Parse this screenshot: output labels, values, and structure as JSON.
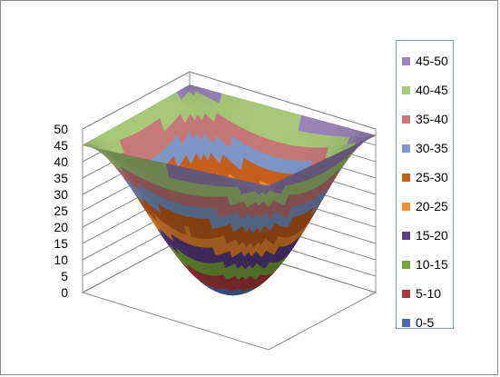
{
  "chart_data": {
    "type": "surface",
    "title": "",
    "z_axis": {
      "min": 0,
      "max": 50,
      "step": 5,
      "tick_labels": [
        "0",
        "5",
        "10",
        "15",
        "20",
        "25",
        "30",
        "35",
        "40",
        "45",
        "50"
      ]
    },
    "surface": {
      "shape": "bowl",
      "corner_values": [
        45,
        50,
        48,
        46
      ],
      "center_value": 0
    },
    "bands": [
      {
        "label": "0-5",
        "from": 0,
        "to": 5,
        "color": "#4a6aa8"
      },
      {
        "label": "5-10",
        "from": 5,
        "to": 10,
        "color": "#a8383a"
      },
      {
        "label": "10-15",
        "from": 10,
        "to": 15,
        "color": "#7aa33c"
      },
      {
        "label": "15-20",
        "from": 15,
        "to": 20,
        "color": "#5b3f87"
      },
      {
        "label": "20-25",
        "from": 20,
        "to": 25,
        "color": "#f28a30"
      },
      {
        "label": "25-30",
        "from": 25,
        "to": 30,
        "color": "#c8601c"
      },
      {
        "label": "30-35",
        "from": 30,
        "to": 35,
        "color": "#7f98c8"
      },
      {
        "label": "35-40",
        "from": 35,
        "to": 40,
        "color": "#c87a78"
      },
      {
        "label": "40-45",
        "from": 40,
        "to": 45,
        "color": "#a8c87a"
      },
      {
        "label": "45-50",
        "from": 45,
        "to": 50,
        "color": "#9a86b8"
      }
    ],
    "legend": {
      "position": "right",
      "order": [
        "45-50",
        "40-45",
        "35-40",
        "30-35",
        "25-30",
        "20-25",
        "15-20",
        "10-15",
        "5-10",
        "0-5"
      ]
    },
    "gridlines": true
  }
}
